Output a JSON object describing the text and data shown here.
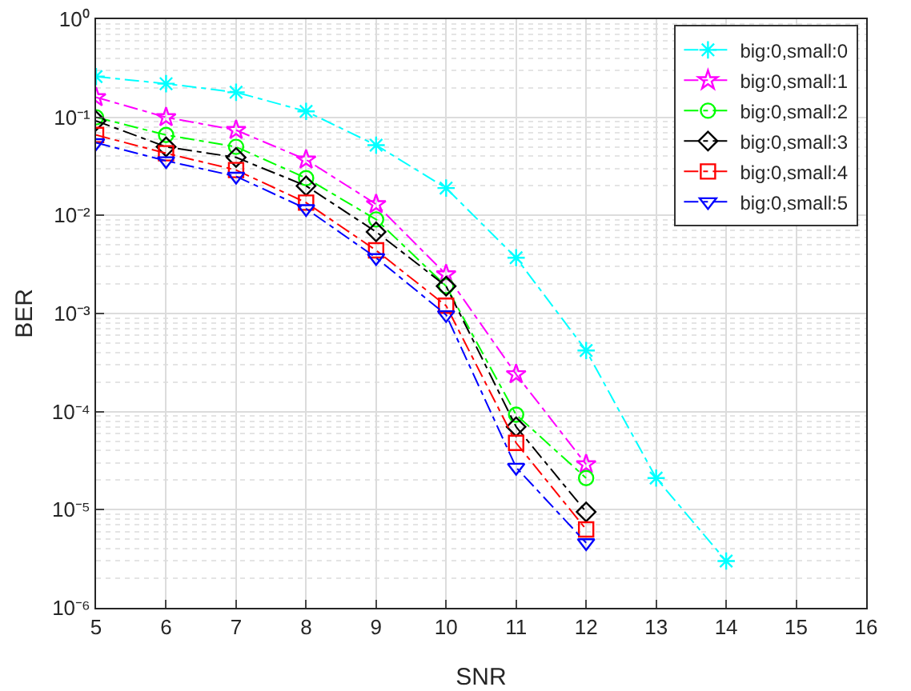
{
  "chart_data": {
    "type": "line",
    "xlabel": "SNR",
    "ylabel": "BER",
    "x": [
      5,
      6,
      7,
      8,
      9,
      10,
      11,
      12,
      13,
      14
    ],
    "xlim": [
      5,
      16
    ],
    "xticks": [
      5,
      6,
      7,
      8,
      9,
      10,
      11,
      12,
      13,
      14,
      15,
      16
    ],
    "ylim": [
      1e-06,
      1
    ],
    "yticks": [
      {
        "value": 1e-06,
        "label": "10⁻⁶"
      },
      {
        "value": 1e-05,
        "label": "10⁻⁵"
      },
      {
        "value": 0.0001,
        "label": "10⁻⁴"
      },
      {
        "value": 0.001,
        "label": "10⁻³"
      },
      {
        "value": 0.01,
        "label": "10⁻²"
      },
      {
        "value": 0.1,
        "label": "10⁻¹"
      },
      {
        "value": 1,
        "label": "10⁰"
      }
    ],
    "log": "y",
    "grid": true,
    "legend": "top right",
    "line_style": "dashed",
    "series": [
      {
        "name": "big:0,small:0",
        "color": "#00ffff",
        "marker": "cross",
        "values": [
          0.26,
          0.22,
          0.18,
          0.115,
          0.052,
          0.019,
          0.0037,
          0.00042,
          2.1e-05,
          3e-06
        ]
      },
      {
        "name": "big:0,small:1",
        "color": "#ff00ff",
        "marker": "star",
        "values": [
          0.16,
          0.1,
          0.074,
          0.037,
          0.013,
          0.0025,
          0.00024,
          2.9e-05,
          null,
          null
        ]
      },
      {
        "name": "big:0,small:2",
        "color": "#00ff00",
        "marker": "circle",
        "values": [
          0.1,
          0.066,
          0.05,
          0.024,
          0.0091,
          0.0019,
          9.3e-05,
          2.1e-05,
          null,
          null
        ]
      },
      {
        "name": "big:0,small:3",
        "color": "#000000",
        "marker": "diamond",
        "values": [
          0.092,
          0.05,
          0.039,
          0.02,
          0.0068,
          0.0019,
          7e-05,
          9.5e-06,
          null,
          null
        ]
      },
      {
        "name": "big:0,small:4",
        "color": "#ff0000",
        "marker": "square",
        "values": [
          0.066,
          0.043,
          0.029,
          0.0135,
          0.0044,
          0.0012,
          4.8e-05,
          6.3e-06,
          null,
          null
        ]
      },
      {
        "name": "big:0,small:5",
        "color": "#0000ff",
        "marker": "triangle",
        "values": [
          0.055,
          0.036,
          0.025,
          0.0117,
          0.0037,
          0.00097,
          2.7e-05,
          4.6e-06,
          null,
          null
        ]
      }
    ]
  }
}
